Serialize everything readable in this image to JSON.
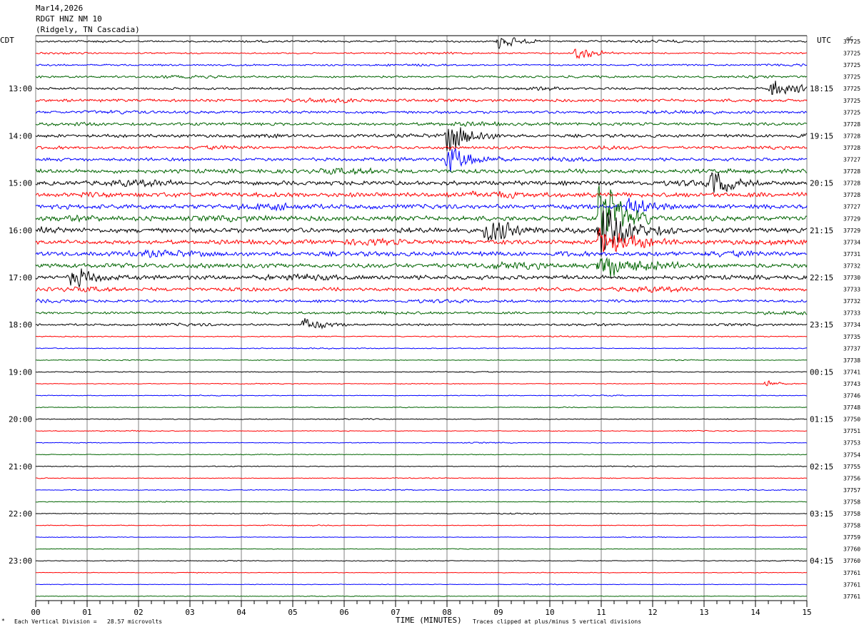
{
  "header": {
    "date": "Mar14,2026",
    "station": "RDGT HNZ NM 10",
    "location": "(Ridgely, TN Cascadia)"
  },
  "left_zone_label": "CDT",
  "right_zone_label": "UTC",
  "temp_header": "oC",
  "footer": {
    "division": "Each Vertical Division =   28.57 microvolts",
    "clip_note": "Traces clipped at plus/minus 5 vertical divisions"
  },
  "chart_data": {
    "type": "line",
    "title": "RDGT HNZ NM 10",
    "xlabel": "TIME (MINUTES)",
    "xlim": [
      0,
      15
    ],
    "x_tick_labels": [
      "00",
      "01",
      "02",
      "03",
      "04",
      "05",
      "06",
      "07",
      "08",
      "09",
      "10",
      "11",
      "12",
      "13",
      "14",
      "15"
    ],
    "trace_colors": [
      "#000000",
      "#ff0000",
      "#0000ff",
      "#006400"
    ],
    "left_hour_labels": [
      {
        "trace": 4,
        "label": "13:00"
      },
      {
        "trace": 8,
        "label": "14:00"
      },
      {
        "trace": 12,
        "label": "15:00"
      },
      {
        "trace": 16,
        "label": "16:00"
      },
      {
        "trace": 20,
        "label": "17:00"
      },
      {
        "trace": 24,
        "label": "18:00"
      },
      {
        "trace": 28,
        "label": "19:00"
      },
      {
        "trace": 32,
        "label": "20:00"
      },
      {
        "trace": 36,
        "label": "21:00"
      },
      {
        "trace": 40,
        "label": "22:00"
      },
      {
        "trace": 44,
        "label": "23:00"
      }
    ],
    "right_hour_labels": [
      {
        "trace": 4,
        "label": "18:15"
      },
      {
        "trace": 8,
        "label": "19:15"
      },
      {
        "trace": 12,
        "label": "20:15"
      },
      {
        "trace": 16,
        "label": "21:15"
      },
      {
        "trace": 20,
        "label": "22:15"
      },
      {
        "trace": 24,
        "label": "23:15"
      },
      {
        "trace": 28,
        "label": "00:15"
      },
      {
        "trace": 32,
        "label": "01:15"
      },
      {
        "trace": 36,
        "label": "02:15"
      },
      {
        "trace": 40,
        "label": "03:15"
      },
      {
        "trace": 44,
        "label": "04:15"
      }
    ],
    "temperatures": [
      "37725",
      "37725",
      "37725",
      "37725",
      "37725",
      "37725",
      "37725",
      "37728",
      "37728",
      "37728",
      "37727",
      "37728",
      "37728",
      "37728",
      "37727",
      "37729",
      "37729",
      "37734",
      "37731",
      "37732",
      "37730",
      "37733",
      "37732",
      "37733",
      "37734",
      "37735",
      "37737",
      "37738",
      "37741",
      "37743",
      "37746",
      "37748",
      "37750",
      "37751",
      "37753",
      "37754",
      "37755",
      "37756",
      "37757",
      "37758",
      "37758",
      "37758",
      "37759",
      "37760",
      "37760",
      "37761",
      "37761",
      "37761"
    ],
    "noise_level": [
      0.6,
      0.5,
      0.6,
      0.7,
      0.8,
      1.0,
      0.9,
      1.0,
      1.1,
      1.0,
      1.1,
      1.4,
      1.5,
      1.6,
      1.6,
      1.7,
      1.6,
      1.5,
      1.6,
      1.6,
      1.5,
      1.2,
      0.9,
      0.8,
      0.7,
      0.35,
      0.3,
      0.25,
      0.3,
      0.25,
      0.25,
      0.25,
      0.3,
      0.25,
      0.25,
      0.25,
      0.25,
      0.25,
      0.3,
      0.25,
      0.3,
      0.25,
      0.2,
      0.2,
      0.25,
      0.2,
      0.2,
      0.2
    ],
    "events": [
      {
        "trace": 15,
        "minute": 10.95,
        "amplitude": 5.0,
        "duration": 0.35
      },
      {
        "trace": 16,
        "minute": 10.95,
        "amplitude": 3.0,
        "duration": 0.5
      },
      {
        "trace": 17,
        "minute": 10.95,
        "amplitude": 2.0,
        "duration": 0.5
      },
      {
        "trace": 19,
        "minute": 10.95,
        "amplitude": 1.5,
        "duration": 0.6
      },
      {
        "trace": 8,
        "minute": 8.0,
        "amplitude": 1.8,
        "duration": 0.4
      },
      {
        "trace": 10,
        "minute": 8.0,
        "amplitude": 1.6,
        "duration": 0.4
      },
      {
        "trace": 16,
        "minute": 8.75,
        "amplitude": 1.6,
        "duration": 0.4
      },
      {
        "trace": 12,
        "minute": 13.15,
        "amplitude": 1.3,
        "duration": 0.3
      },
      {
        "trace": 4,
        "minute": 14.3,
        "amplitude": 1.2,
        "duration": 0.4
      },
      {
        "trace": 20,
        "minute": 0.7,
        "amplitude": 1.3,
        "duration": 0.3
      },
      {
        "trace": 0,
        "minute": 9.0,
        "amplitude": 0.9,
        "duration": 0.3
      },
      {
        "trace": 1,
        "minute": 10.5,
        "amplitude": 0.8,
        "duration": 0.3
      },
      {
        "trace": 14,
        "minute": 11.5,
        "amplitude": 1.2,
        "duration": 0.3
      },
      {
        "trace": 24,
        "minute": 5.2,
        "amplitude": 0.8,
        "duration": 0.3
      },
      {
        "trace": 29,
        "minute": 14.2,
        "amplitude": 0.6,
        "duration": 0.15
      }
    ]
  }
}
